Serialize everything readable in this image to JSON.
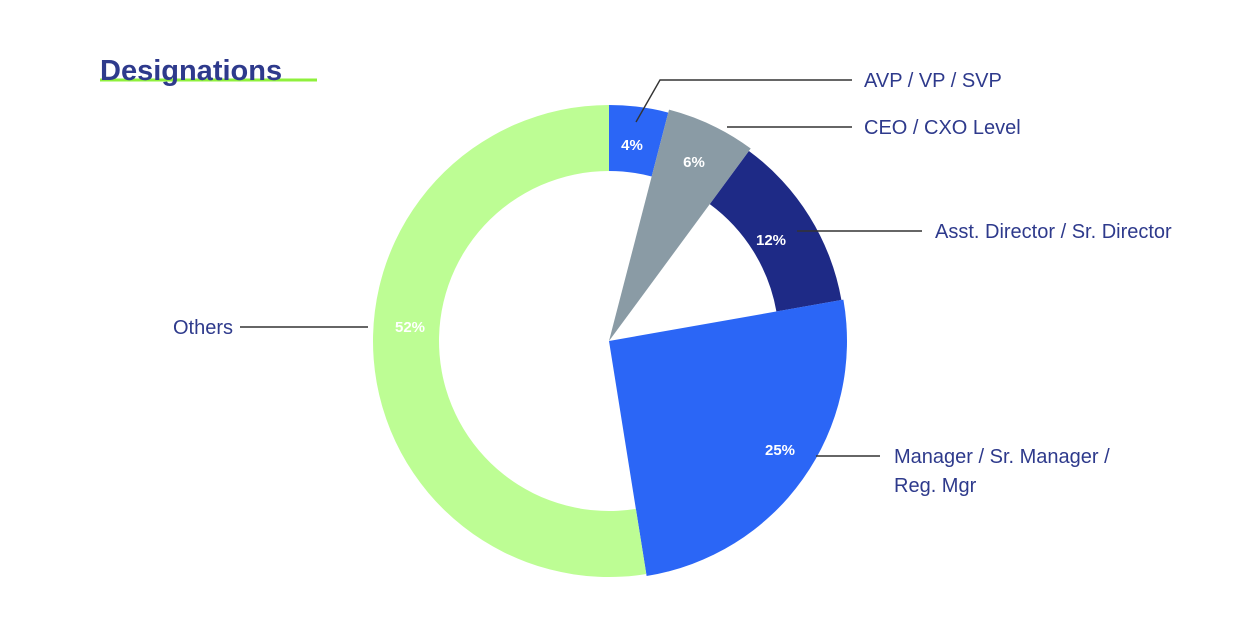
{
  "chart_data": {
    "type": "pie",
    "title": "Designations",
    "slices": [
      {
        "label": "AVP / VP / SVP",
        "value": 4,
        "value_label": "4%",
        "color": "#2b66f6",
        "style": "ring"
      },
      {
        "label": "CEO / CXO Level",
        "value": 6,
        "value_label": "6%",
        "color": "#8a9ba5",
        "style": "full"
      },
      {
        "label": "Asst. Director / Sr. Director",
        "value": 12,
        "value_label": "12%",
        "color": "#1e2a86",
        "style": "ring"
      },
      {
        "label": "Manager / Sr. Manager / Reg. Mgr",
        "label_lines": [
          "Manager / Sr. Manager /",
          "Reg. Mgr"
        ],
        "value": 25,
        "value_label": "25%",
        "color": "#2b66f6",
        "style": "full"
      },
      {
        "label": "Others",
        "value": 52,
        "value_label": "52%",
        "color": "#bdfd94",
        "style": "ring"
      }
    ]
  },
  "colors": {
    "title": "#2e3a8c",
    "title_underline": "#8ff03c",
    "legend_text": "#2e3a8c",
    "leader_line": "#333333"
  }
}
